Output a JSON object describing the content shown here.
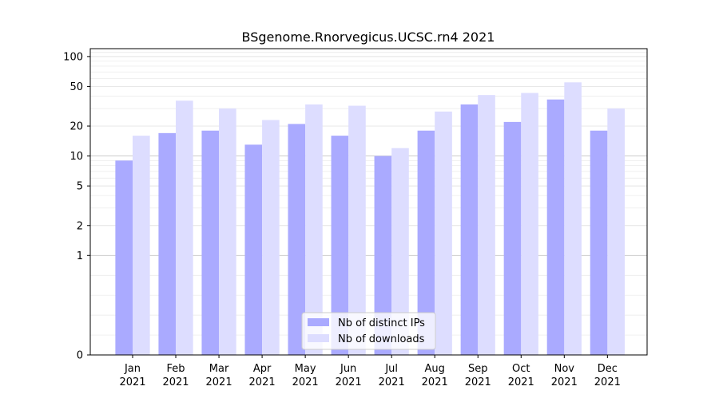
{
  "chart_data": {
    "type": "bar",
    "title": "BSgenome.Rnorvegicus.UCSC.rn4 2021",
    "xlabel": "",
    "ylabel": "",
    "yscale": "symlog",
    "ylim": [
      0,
      120
    ],
    "yticks": [
      0,
      1,
      2,
      5,
      10,
      20,
      50,
      100
    ],
    "categories": [
      [
        "Jan",
        "2021"
      ],
      [
        "Feb",
        "2021"
      ],
      [
        "Mar",
        "2021"
      ],
      [
        "Apr",
        "2021"
      ],
      [
        "May",
        "2021"
      ],
      [
        "Jun",
        "2021"
      ],
      [
        "Jul",
        "2021"
      ],
      [
        "Aug",
        "2021"
      ],
      [
        "Sep",
        "2021"
      ],
      [
        "Oct",
        "2021"
      ],
      [
        "Nov",
        "2021"
      ],
      [
        "Dec",
        "2021"
      ]
    ],
    "series": [
      {
        "name": "Nb of distinct IPs",
        "color": "#aaaaff",
        "values": [
          9,
          17,
          18,
          13,
          21,
          16,
          10,
          18,
          33,
          22,
          37,
          18
        ]
      },
      {
        "name": "Nb of downloads",
        "color": "#ddddff",
        "values": [
          16,
          36,
          30,
          23,
          33,
          32,
          12,
          28,
          41,
          43,
          55,
          30
        ]
      }
    ],
    "legend_position": "bottom-center",
    "grid": true
  }
}
